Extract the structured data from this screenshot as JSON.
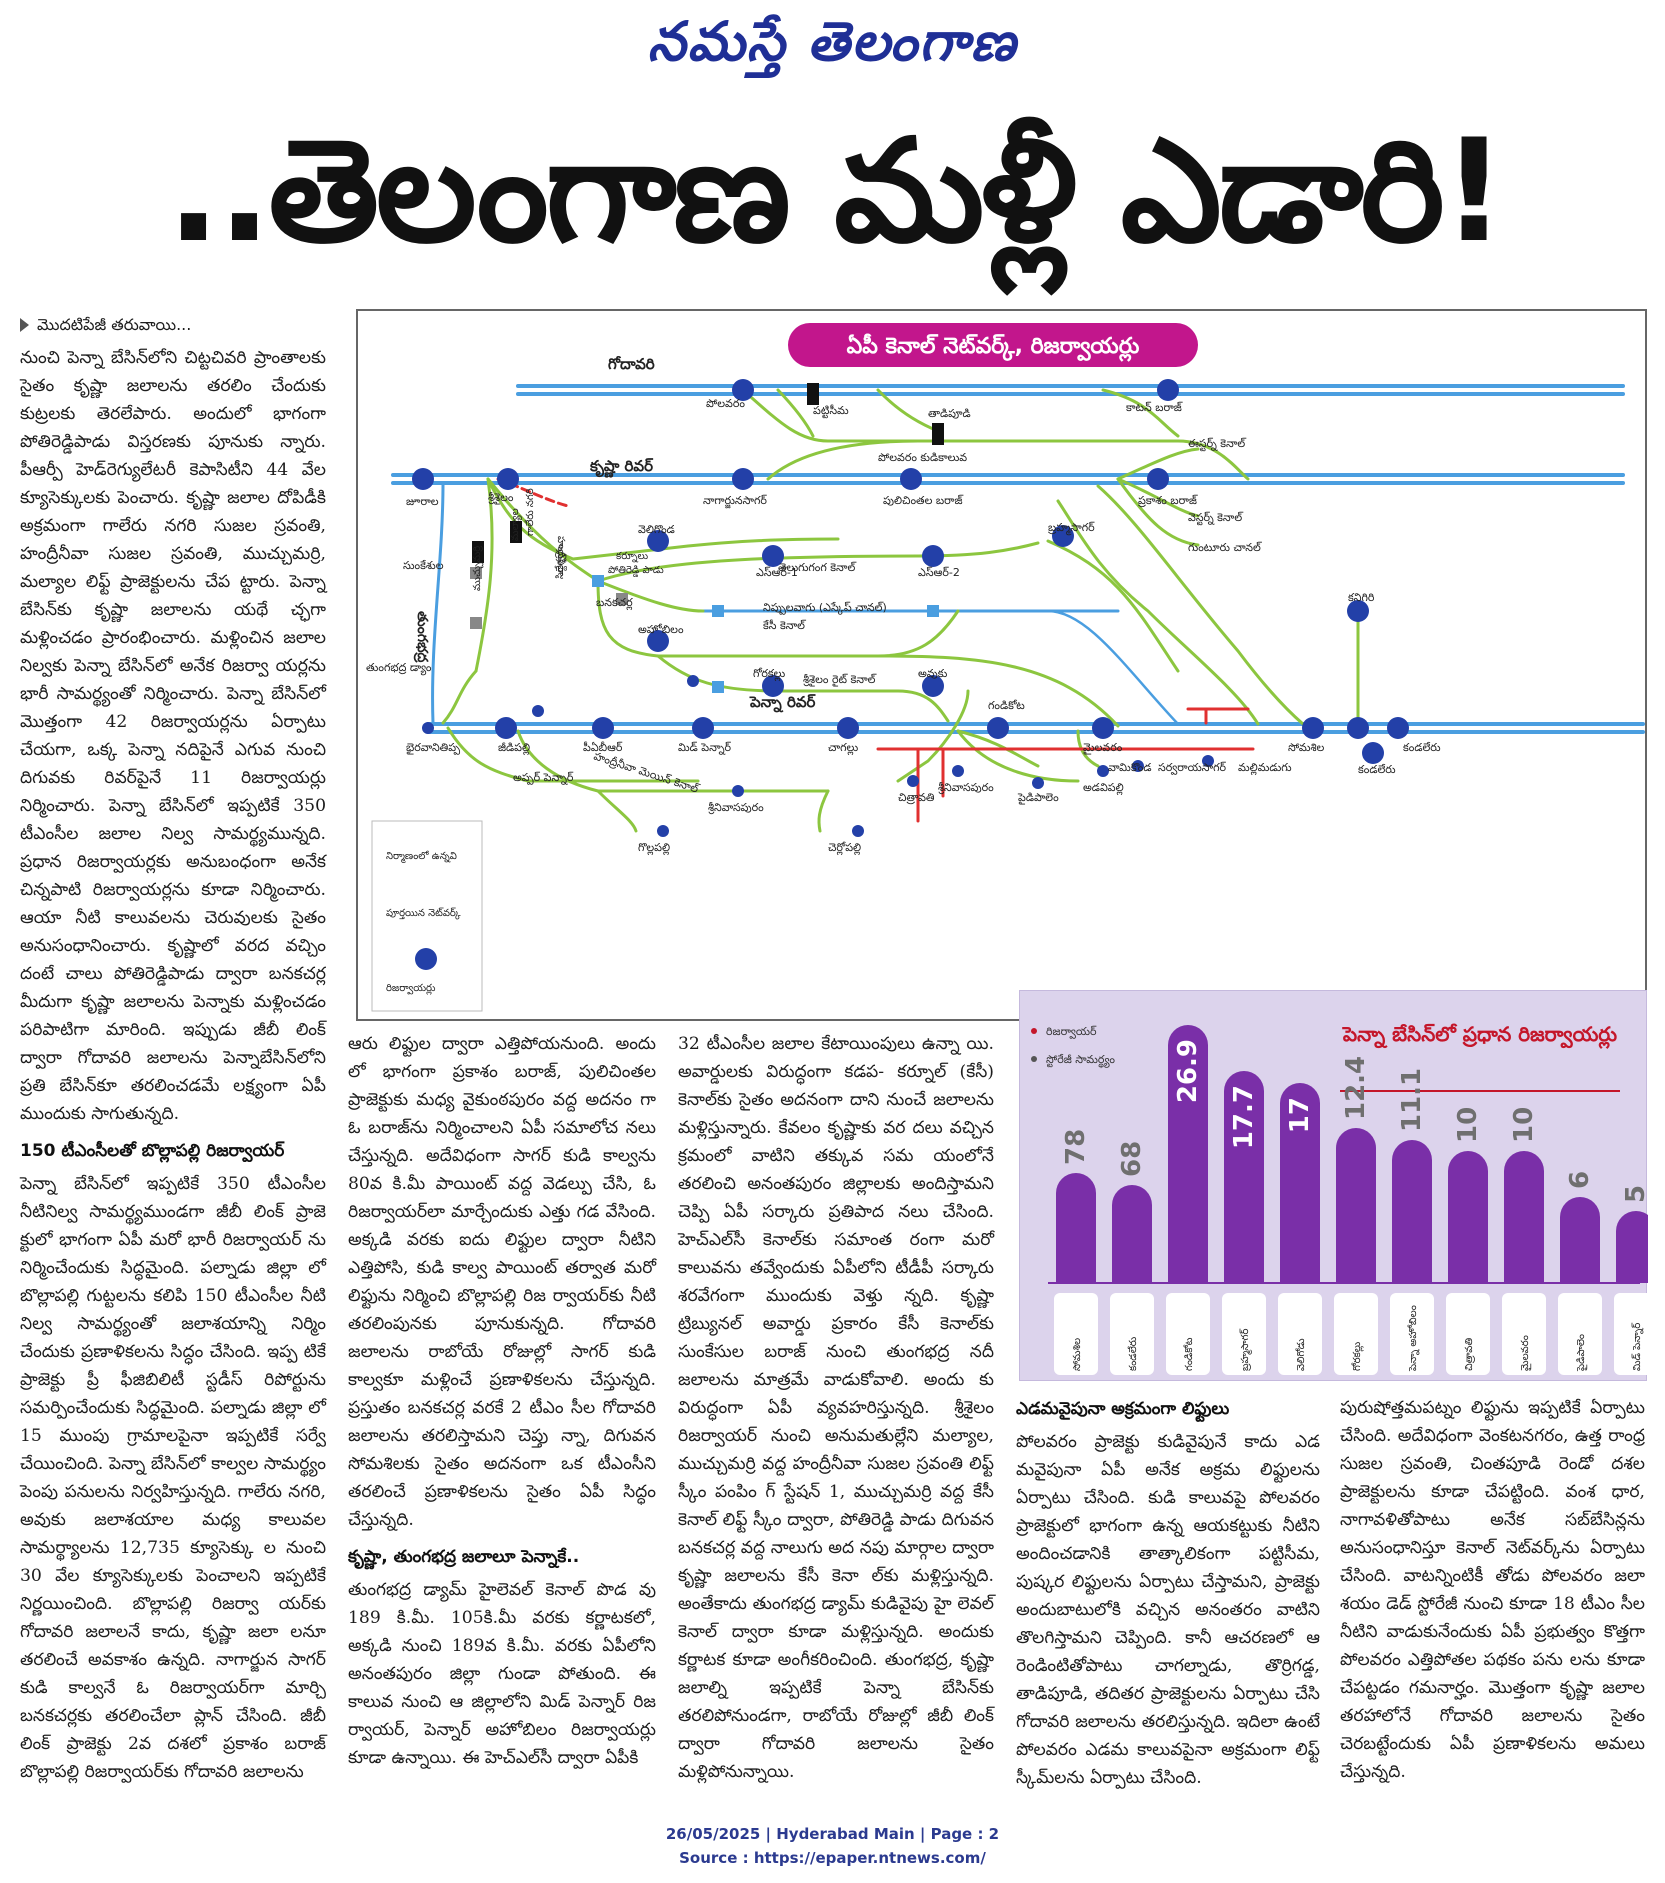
{
  "masthead": "నమస్తే తెలంగాణ",
  "headline": "..తెలంగాణ మళ్లీ ఎడారి!",
  "col1": {
    "continued": "మొదటిపేజీ తరువాయి...",
    "p1": "నుంచి పెన్నా బేసిన్‌లోని చిట్టచివరి ప్రాంతాలకు సైతం కృష్ణా జలాలను తరలిం చేందుకు కుట్రలకు తెరలేపారు. అందులో భాగంగా పోతిరెడ్డిపాడు విస్తరణకు పూనుకు న్నారు. పీఆర్పీ హెడ్‌రెగ్యులేటరీ కెపాసిటీని 44 వేల క్యూసెక్కులకు పెంచారు. కృష్ణా జలాల దోపిడీకి అక్రమంగా గాలేరు నగరి సుజల స్రవంతి, హంద్రీనీవా సుజల స్రవంతి, ముచ్చుమర్రి, మల్యాల లిఫ్ట్ ప్రాజెక్టులను చేప ట్టారు. పెన్నా బేసిన్‌కు కృష్ణా జలాలను యథే చ్ఛగా మళ్లించడం ప్రారంభించారు. మళ్లించిన జలాల నిల్వకు పెన్నా బేసిన్‌లో అనేక రిజర్వా యర్లను భారీ సామర్థ్యంతో నిర్మించారు. పెన్నా బేసిన్‌లో మొత్తంగా 42 రిజర్వాయర్లను ఏర్పాటు చేయగా, ఒక్క పెన్నా నదిపైనే ఎగువ నుంచి దిగువకు రివర్‌పైనే 11 రిజర్వాయర్లు నిర్మించారు. పెన్నా బేసిన్‌లో ఇప్పటికే 350 టీఎంసీల జలాల నిల్వ సామర్థ్యమున్నది. ప్రధాన రిజర్వాయర్లకు అనుబంధంగా అనేక చిన్నపాటి రిజర్వాయర్లను కూడా నిర్మించారు. ఆయా నీటి కాలువలను చెరువులకు సైతం అనుసంధానించారు. కృష్ణాలో వరద వచ్చిం దంటే చాలు పోతిరెడ్డిపాడు ద్వారా బనకచర్ల మీదుగా కృష్ణా జలాలను పెన్నాకు మళ్లించడం పరిపాటిగా మారింది. ఇప్పుడు జీబీ లింక్ ద్వారా గోదావరి జలాలను పెన్నాబేసిన్‌లోని ప్రతి బేసిన్‌కూ తరలించడమే లక్ష్యంగా ఏపీ ముందుకు సాగుతున్నది.",
    "sub": "150 టీఎంసీలతో బొల్లాపల్లి రిజర్వాయర్",
    "p2": "పెన్నా బేసిన్‌లో ఇప్పటికే 350 టీఎంసీల నీటినిల్వ సామర్థ్యముండగా జీబీ లింక్ ప్రాజె క్టులో భాగంగా ఏపీ మరో భారీ రిజర్వాయర్ ను నిర్మించేందుకు సిద్ధమైంది. పల్నాడు జిల్లా లో బొల్లాపల్లి గుట్టలను కలిపి 150 టీఎంసీల నీటి నిల్వ సామర్థ్యంతో జలాశయాన్ని నిర్మిం చేందుకు ప్రణాళికలను సిద్ధం చేసింది. ఇప్ప టికే ప్రాజెక్టు ప్రీ ఫీజిబిలిటీ స్టడీస్ రిపోర్టును సమర్పించేందుకు సిద్ధమైంది. పల్నాడు జిల్లా లో 15 ముంపు గ్రామాలపైనా ఇప్పటికే సర్వే చేయించింది. పెన్నా బేసిన్‌లో కాల్వల సామర్థ్యం పెంపు పనులను నిర్వహిస్తున్నది. గాలేరు నగరి, అవుకు జలాశయాల మధ్య కాలువల సామర్థ్యాలను 12,735 క్యూసెక్కు ల నుంచి 30 వేల క్యూసెక్కులకు పెంచాలని ఇప్పటికే నిర్ణయించింది. బొల్లాపల్లి రిజర్వా యర్‌కు గోదావరి జలాలనే కాదు, కృష్ణా జలా లనూ తరలించే అవకాశం ఉన్నది. నాగార్జున సాగర్ కుడి కాల్వనే ఓ రిజర్వాయర్‌గా మార్చి బనకచర్లకు తరలించేలా ప్లాన్ చేసింది. జీబీ లింక్ ప్రాజెక్టు 2వ దశలో ప్రకాశం బరాజ్ బొల్లాపల్లి రిజర్వాయర్‌కు గోదావరి జలాలను"
  },
  "col2": {
    "p1": "ఆరు లిఫ్టుల ద్వారా ఎత్తిపోయనుంది. అందు లో భాగంగా ప్రకాశం బరాజ్, పులిచింతల ప్రాజెక్టుకు మధ్య వైకుంఠపురం వద్ద అదనం గా ఓ బరాజ్‌ను నిర్మించాలని ఏపీ సమాలోచ నలు చేస్తున్నది. అదేవిధంగా సాగర్ కుడి కాల్వను 80వ కి.మీ పాయింట్ వద్ద వెడల్పు చేసి, ఓ రిజర్వాయర్‌లా మార్చేందుకు ఎత్తు గడ వేసింది. అక్కడి వరకు ఐదు లిఫ్టుల ద్వారా నీటిని ఎత్తిపోసి, కుడి కాల్వ పాయింట్ తర్వాత మరో లిఫ్టును నిర్మించి బొల్లాపల్లి రిజ ర్వాయర్‌కు నీటి తరలింపునకు పూనుకున్నది. గోదావరి జలాలను రాబోయే రోజుల్లో సాగర్ కుడి కాల్వకూ మళ్లించే ప్రణాళికలను చేస్తున్నది. ప్రస్తుతం బనకచర్ల వరకే 2 టీఎం సీల గోదావరి జలాలను తరలిస్తామని చెప్తు న్నా, దిగువన సోమశిలకు సైతం అదనంగా ఒక టీఎంసీని తరలించే ప్రణాళికలను సైతం ఏపీ సిద్ధం చేస్తున్నది.",
    "sub": "కృష్ణా, తుంగభద్ర జలాలూ పెన్నాకే..",
    "p2": "తుంగభద్ర డ్యామ్ హైలెవల్ కెనాల్ పొడ వు 189 కి.మీ. 105కి.మీ వరకు కర్ణాటకలో, అక్కడి నుంచి 189వ కి.మీ. వరకు ఏపీలోని అనంతపురం జిల్లా గుండా పోతుంది. ఈ కాలువ నుంచి ఆ జిల్లాలోని మిడ్ పెన్నార్ రిజ ర్వాయర్, పెన్నార్ అహోబిలం రిజర్వాయర్లు కూడా ఉన్నాయి. ఈ హెచ్ఎల్‌సీ ద్వారా ఏపీకి"
  },
  "col3": {
    "p1": "32 టీఎంసీల జలాల కేటాయింపులు ఉన్నా యి. అవార్డులకు విరుద్ధంగా కడప- కర్నూల్ (కేసీ) కెనాల్‌కు సైతం అదనంగా దాని నుంచే జలాలను మళ్లిస్తున్నారు. కేవలం కృష్ణాకు వర దలు వచ్చిన క్రమంలో వాటిని తక్కువ సమ యంలోనే తరలించి అనంతపురం జిల్లాలకు అందిస్తామని చెప్పి ఏపీ సర్కారు ప్రతిపాద నలు చేసింది. హెచ్ఎల్‌సీ కెనాల్‌కు సమాంత రంగా మరో కాలువను తవ్వేందుకు ఏపీలోని టీడీపీ సర్కారు శరవేగంగా ముందుకు వెళ్తు న్నది. కృష్ణా ట్రిబ్యునల్ అవార్డు ప్రకారం కేసీ కెనాల్‌కు సుంకేసుల బరాజ్ నుంచి తుంగభద్ర నదీ జలాలను మాత్రమే వాడుకోవాలి. అందు కు విరుద్ధంగా ఏపీ వ్యవహరిస్తున్నది. శ్రీశైలం రిజర్వాయర్ నుంచి అనుమతుల్లేని మల్యాల, ముచ్చుమర్రి వద్ద హంద్రీనీవా సుజల స్రవంతి లిఫ్ట్ స్కీం పంపిం గ్ స్టేషన్ 1, ముచ్చుమర్రి వద్ద కేసీ కెనాల్ లిఫ్ట్ స్కీం ద్వారా, పోతిరెడ్డి పాడు దిగువన బనకచర్ల వద్ద నాలుగు అద నపు మార్గాల ద్వారా కృష్ణా జలాలను కేసీ కెనా ల్‌కు మళ్లిస్తున్నది. అంతేకాదు తుంగభద్ర డ్యామ్ కుడివైపు హై లెవల్ కెనాల్ ద్వారా కూడా మళ్లిస్తున్నది. అందుకు కర్ణాటక కూడా అంగీకరించింది. తుంగభద్ర, కృష్ణా జలాల్ని ఇప్పటికే పెన్నా బేసిన్‌కు తరలిపోనుండగా, రాబోయే రోజుల్లో జీబీ లింక్ ద్వారా గోదావరి జలాలను సైతం మళ్లిపోనున్నాయి."
  },
  "col4": {
    "sub": "ఎడమవైపునా అక్రమంగా లిఫ్టులు",
    "p1": "పోలవరం ప్రాజెక్టు కుడివైపునే కాదు ఎడ మవైపునా ఏపీ అనేక అక్రమ లిఫ్టులను ఏర్పాటు చేసింది. కుడి కాలువపై పోలవరం ప్రాజెక్టులో భాగంగా ఉన్న ఆయకట్టుకు నీటిని అందించడానికి తాత్కాలికంగా పట్టిసీమ, పుష్కర లిఫ్టులను ఏర్పాటు చేస్తామని, ప్రాజెక్టు అందుబాటులోకి వచ్చిన అనంతరం వాటిని తొలగిస్తామని చెప్పింది. కానీ ఆచరణలో ఆ రెండింటితోపాటు చాగల్నాడు, తొర్రిగడ్డ, తాడిపూడి, తదితర ప్రాజెక్టులను ఏర్పాటు చేసి గోదావరి జలాలను తరలిస్తున్నది. ఇదిలా ఉంటే పోలవరం ఎడమ కాలువపైనా అక్రమంగా లిఫ్ట్ స్కీమ్‌లను ఏర్పాటు చేసింది."
  },
  "col5": {
    "p1": "పురుషోత్తమపట్నం లిఫ్టును ఇప్పటికే ఏర్పాటు చేసింది. అదేవిధంగా వెంకటనగరం, ఉత్త రాంధ్ర సుజల స్రవంతి, చింతపూడి రెండో దశల ప్రాజెక్టులను కూడా చేపట్టింది. వంశ ధార, నాగావళితోపాటు అనేక సబ్‌బేసిన్లను అనుసంధానిస్తూ కెనాల్ నెట్‌వర్క్‌ను ఏర్పాటు చేసింది. వాటన్నింటికీ తోడు పోలవరం జలా శయం డెడ్ స్టోరేజీ నుంచి కూడా 18 టీఎం సీల నీటిని వాడుకునేందుకు ఏపీ ప్రభుత్వం కొత్తగా పోలవరం ఎత్తిపోతల పథకం పను లను కూడా చేపట్టడం గమనార్హం. మొత్తంగా కృష్ణా జలాల తరహాలోనే గోదావరి జలాలను సైతం చెరబట్టేందుకు ఏపీ ప్రణాళికలను అమలు చేస్తున్నది."
  },
  "map": {
    "title": "ఏపీ కెనాల్ నెట్‌వర్క్, రిజర్వాయర్లు",
    "colors": {
      "river": "#4a9ee0",
      "canal": "#8cc63f",
      "construction": "#e03030",
      "reservoir": "#2340a8",
      "title_bg": "#c2168c"
    },
    "rivers": {
      "godavari": "గోదావరి",
      "krishna": "కృష్ణా రివర్",
      "penna": "పెన్నా రివర్",
      "tungabhadra": "తుంగభద్ర"
    },
    "labels": {
      "polavaram": "పోలవరం",
      "pattiseema": "పట్టిసీమ",
      "tadipudi": "తాడిపూడి",
      "cotton": "కాటన్ బరాజ్",
      "polavaram_canal": "పోలవరం కుడికాలువ",
      "jurala": "జూరాల",
      "srisailam": "శ్రీశైలం",
      "nagarjuna": "నాగార్జునసాగర్",
      "pulichintala": "పులిచింతల బరాజ్",
      "prakasam": "ప్రకాశం బరాజ్",
      "eastern": "ఈస్టర్న్ కెనాల్",
      "western": "వెస్టర్న్ కెనాల్",
      "guntur": "గుంటూరు చానల్",
      "brahmam": "బ్రహ్మసాగర్",
      "veligonda": "వెలిగొండ",
      "sr1": "ఎస్ఆర్-1",
      "sr2": "ఎస్ఆర్-2",
      "telugu_ganga": "తెలుగుగంగ కెనాల్",
      "nippulavagu": "నిప్పులవాగు (ఎస్కేప్ చానల్)",
      "kc_canal": "కేసీ కెనాల్",
      "kc_canal2": "కేసీ కెనాల్",
      "banakacherla": "బనకచర్ల",
      "sunkesula": "సుంకేశుల",
      "tb_dam": "తుంగభద్ర డ్యాం",
      "ahobilam": "అహోబిలం",
      "gorakallu": "గోరకల్లు",
      "srbc": "శ్రీశైలం రైట్ కెనాల్",
      "avuku": "అవుకు",
      "kandaleru": "కండలేరు",
      "kandaleru2": "కండలేరు",
      "kanigiri": "కనిగిరి",
      "gandikota": "గండికోట",
      "somasila": "సోమశిల",
      "bhairavanitippa": "భైరవానితిప్ప",
      "jeedipalli": "జీడిపల్లి",
      "pabr": "పీఏబీఆర్",
      "mid_pennar": "మిడ్ పెన్నార్",
      "chagallu": "చాగల్లు",
      "mylavaram": "మైలవరం",
      "vamikonda": "వామికొండ",
      "sarvaraya": "సర్వరాయసాగర్",
      "mallemadugu": "మల్లిమడుగు",
      "chitravathi": "చిత్రావతి",
      "paidipalem": "పైడిపాలెం",
      "apper": "అప్పర్ పెన్నార్",
      "hnss_main": "హంద్రీనీవా మెయిన్ కెనాల్",
      "srinivasapuram": "శ్రీనివాసపురం",
      "srinivasapuram2": "శ్రీనివాసపురం",
      "adavipalli": "అడవిపల్లి",
      "gollapalli": "గొల్లపల్లి",
      "cherlopalli": "చెర్లోపల్లి",
      "pothireddy": "పోతిరెడ్డి పాడు",
      "malyala": "మల్యాల",
      "muchumarri": "ముచ్చుమర్రి",
      "hnss": "హంద్రీనీవా",
      "sgl": "సిద్దేశ్వరం",
      "galeru": "గాలేరు నగరి",
      "kurnool": "కర్నూలు",
      "legend_construction": "నిర్మాణంలో ఉన్నవి",
      "legend_network": "పూర్తయిన నెట్‌వర్క్",
      "legend_reservoir": "రిజర్వాయర్లు"
    }
  },
  "chart_data": {
    "type": "bar",
    "title": "పెన్నా బేసిన్‌లో ప్రధాన రిజర్వాయర్లు",
    "legend": [
      "రిజర్వాయర్",
      "స్టోరేజీ సామర్థ్యం"
    ],
    "categories": [
      "సోమశిల",
      "కండలేరు",
      "గండికోట",
      "బ్రహ్మసాగర్",
      "వెలిగోడు",
      "గోరకల్లు",
      "పెన్నా అహోబిలం",
      "చిత్రావతి",
      "మైలవరం",
      "పైడిపాలెం",
      "మిడ్ పెన్నార్"
    ],
    "values": [
      78,
      68,
      26.9,
      17.7,
      17,
      12.4,
      11.1,
      10,
      10,
      6,
      5
    ],
    "labels": [
      "78",
      "68",
      "26.9",
      "17.7",
      "17",
      "12.4",
      "11.1",
      "10",
      "10",
      "6",
      "5"
    ],
    "colors": {
      "bar": "#7a2fa8",
      "label_top": "#6f6f6f",
      "label_inside": "#ffffff"
    }
  },
  "footer": {
    "line1": "26/05/2025 | Hyderabad Main | Page : 2",
    "line2": "Source : https://epaper.ntnews.com/"
  }
}
